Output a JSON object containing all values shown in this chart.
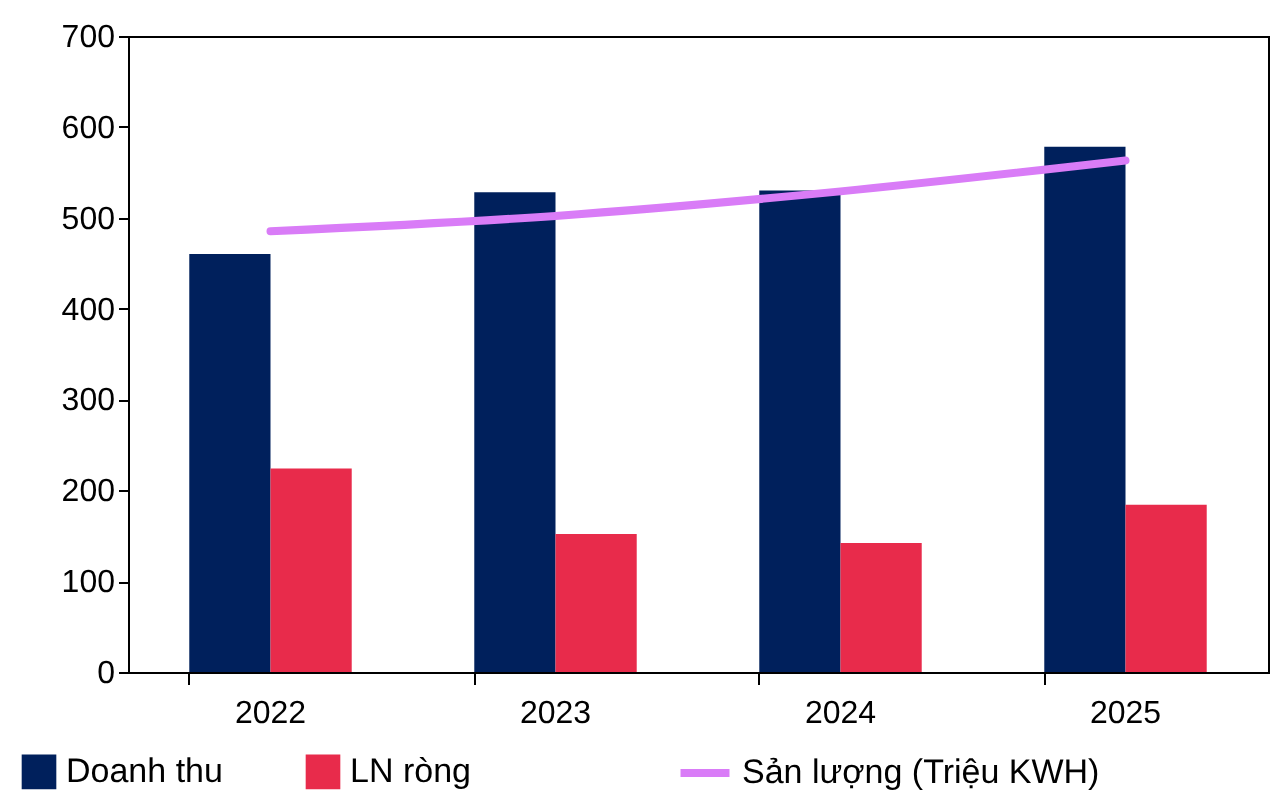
{
  "chart_data": {
    "type": "bar",
    "categories": [
      "2022",
      "2023",
      "2024",
      "2025"
    ],
    "series": [
      {
        "name": "Doanh thu",
        "color": "#00205c",
        "values": [
          460,
          528,
          530,
          578
        ]
      },
      {
        "name": "LN ròng",
        "color": "#e82b4b",
        "values": [
          224,
          152,
          142,
          184
        ]
      },
      {
        "name": "Sản lượng (Triệu KWH)",
        "type": "line",
        "color": "#d97cf7",
        "values": [
          485,
          502,
          529,
          563
        ]
      }
    ],
    "ylim": [
      0,
      700
    ],
    "yticks": [
      0,
      100,
      200,
      300,
      400,
      500,
      600,
      700
    ],
    "grid": false,
    "legend": "bottom"
  }
}
